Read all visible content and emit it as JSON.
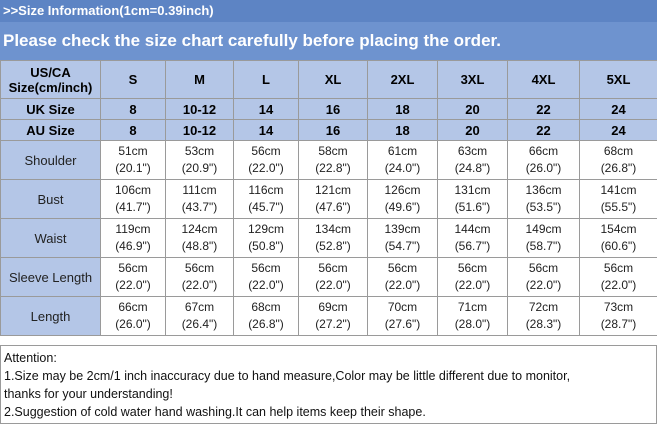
{
  "header": {
    "size_info": ">>Size Information(1cm=0.39inch)",
    "notice": "Please check the size chart carefully before placing the order."
  },
  "table": {
    "corner_line1": "US/CA",
    "corner_line2": "Size(cm/inch)",
    "us_sizes": [
      "S",
      "M",
      "L",
      "XL",
      "2XL",
      "3XL",
      "4XL",
      "5XL"
    ],
    "uk_label": "UK Size",
    "uk_sizes": [
      "8",
      "10-12",
      "14",
      "16",
      "18",
      "20",
      "22",
      "24"
    ],
    "au_label": "AU Size",
    "au_sizes": [
      "8",
      "10-12",
      "14",
      "16",
      "18",
      "20",
      "22",
      "24"
    ],
    "measurements": [
      {
        "name": "Shoulder",
        "cm": [
          "51cm",
          "53cm",
          "56cm",
          "58cm",
          "61cm",
          "63cm",
          "66cm",
          "68cm"
        ],
        "inch": [
          "(20.1\")",
          "(20.9\")",
          "(22.0\")",
          "(22.8\")",
          "(24.0\")",
          "(24.8\")",
          "(26.0\")",
          "(26.8\")"
        ]
      },
      {
        "name": "Bust",
        "cm": [
          "106cm",
          "111cm",
          "116cm",
          "121cm",
          "126cm",
          "131cm",
          "136cm",
          "141cm"
        ],
        "inch": [
          "(41.7\")",
          "(43.7\")",
          "(45.7\")",
          "(47.6\")",
          "(49.6\")",
          "(51.6\")",
          "(53.5\")",
          "(55.5\")"
        ]
      },
      {
        "name": "Waist",
        "cm": [
          "119cm",
          "124cm",
          "129cm",
          "134cm",
          "139cm",
          "144cm",
          "149cm",
          "154cm"
        ],
        "inch": [
          "(46.9\")",
          "(48.8\")",
          "(50.8\")",
          "(52.8\")",
          "(54.7\")",
          "(56.7\")",
          "(58.7\")",
          "(60.6\")"
        ]
      },
      {
        "name": "Sleeve Length",
        "cm": [
          "56cm",
          "56cm",
          "56cm",
          "56cm",
          "56cm",
          "56cm",
          "56cm",
          "56cm"
        ],
        "inch": [
          "(22.0\")",
          "(22.0\")",
          "(22.0\")",
          "(22.0\")",
          "(22.0\")",
          "(22.0\")",
          "(22.0\")",
          "(22.0\")"
        ]
      },
      {
        "name": "Length",
        "cm": [
          "66cm",
          "67cm",
          "68cm",
          "69cm",
          "70cm",
          "71cm",
          "72cm",
          "73cm"
        ],
        "inch": [
          "(26.0\")",
          "(26.4\")",
          "(26.8\")",
          "(27.2\")",
          "(27.6\")",
          "(28.0\")",
          "(28.3\")",
          "(28.7\")"
        ]
      }
    ]
  },
  "notes": {
    "title": "Attention:",
    "line1": "1.Size may be 2cm/1 inch inaccuracy due to hand measure,Color may be little different due to monitor,",
    "line1_cont": "thanks for your understanding!",
    "line2": "2.Suggestion of cold water hand washing.It can help items keep their shape."
  },
  "colors": {
    "header_blue": "#5d84c4",
    "notice_blue": "#6e93cf",
    "cell_blue": "#b4c6e7"
  }
}
